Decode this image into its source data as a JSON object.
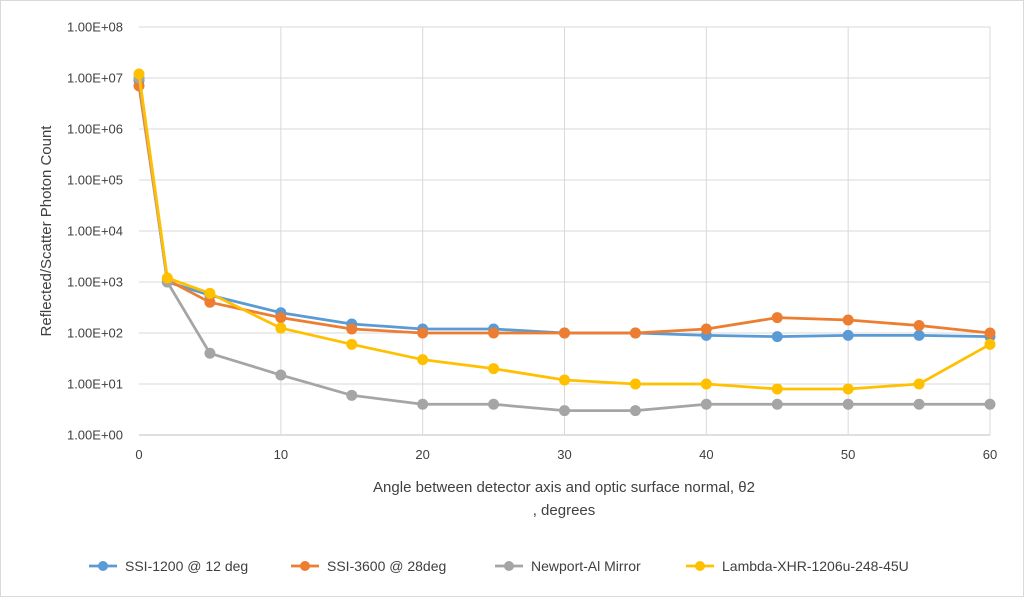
{
  "chart_data": {
    "type": "line",
    "title": "",
    "xlabel_lines": [
      "Angle between detector axis and optic surface normal, θ2",
      ", degrees"
    ],
    "ylabel": "Reflected/Scatter Photon Count",
    "y_scale": "log",
    "xlim": [
      0,
      60
    ],
    "ylim": [
      1,
      100000000
    ],
    "x_ticks": [
      0,
      10,
      20,
      30,
      40,
      50,
      60
    ],
    "x_tick_labels": [
      "0",
      "10",
      "20",
      "30",
      "40",
      "50",
      "60"
    ],
    "y_ticks": [
      1,
      10,
      100,
      1000,
      10000,
      100000,
      1000000,
      10000000,
      100000000
    ],
    "y_tick_labels": [
      "1.00E+00",
      "1.00E+01",
      "1.00E+02",
      "1.00E+03",
      "1.00E+04",
      "1.00E+05",
      "1.00E+06",
      "1.00E+07",
      "1.00E+08"
    ],
    "grid": true,
    "legend_position": "bottom",
    "x": [
      0,
      2,
      5,
      10,
      15,
      20,
      25,
      30,
      35,
      40,
      45,
      50,
      55,
      60
    ],
    "series": [
      {
        "name": "SSI-1200 @ 12 deg",
        "color": "#5b9bd5",
        "values": [
          9000000,
          1000,
          550,
          250,
          150,
          120,
          120,
          100,
          100,
          90,
          85,
          90,
          90,
          85
        ]
      },
      {
        "name": "SSI-3600 @ 28deg",
        "color": "#ed7d31",
        "values": [
          7000000,
          1100,
          400,
          200,
          120,
          100,
          100,
          100,
          100,
          120,
          200,
          180,
          140,
          100
        ]
      },
      {
        "name": "Newport-Al Mirror",
        "color": "#a5a5a5",
        "values": [
          10000000,
          1000,
          40,
          15,
          6,
          4,
          4,
          3,
          3,
          4,
          4,
          4,
          4,
          4
        ]
      },
      {
        "name": "Lambda-XHR-1206u-248-45U",
        "color": "#ffc000",
        "values": [
          12000000,
          1200,
          600,
          125,
          60,
          30,
          20,
          12,
          10,
          10,
          8,
          8,
          10,
          60
        ]
      }
    ]
  }
}
